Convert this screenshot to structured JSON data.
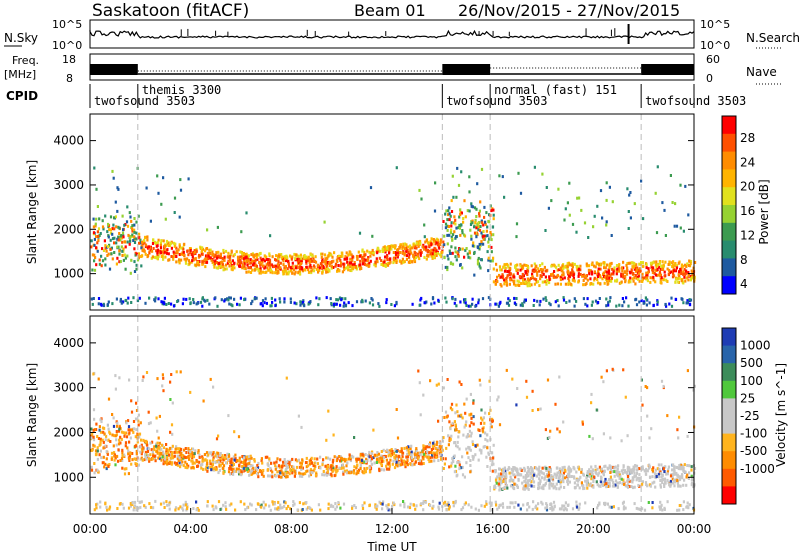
{
  "header": {
    "station": "Saskatoon (fitACF)",
    "beam": "Beam 01",
    "date_range": "26/Nov/2015 - 27/Nov/2015"
  },
  "top_panels": {
    "nsky_label": "N.Sky",
    "nsky_ticks": [
      "10^5",
      "10^0"
    ],
    "nsearch_label": "N.Search",
    "nsearch_ticks": [
      "10^5",
      "10^0"
    ],
    "freq_label_1": "Freq.",
    "freq_label_2": "[MHz]",
    "freq_ticks": [
      "18",
      "8"
    ],
    "nave_label": "Nave",
    "nave_ticks": [
      "60",
      "0"
    ],
    "cpid_label": "CPID"
  },
  "cpid_segments": [
    {
      "name": "twofsound 3503",
      "start_h": 0.0,
      "end_h": 1.9
    },
    {
      "name": "themis 3300",
      "start_h": 1.9,
      "end_h": 14.0
    },
    {
      "name": "twofsound 3503",
      "start_h": 14.0,
      "end_h": 15.9
    },
    {
      "name": "normal (fast) 151",
      "start_h": 15.9,
      "end_h": 21.9
    },
    {
      "name": "twofsound 3503",
      "start_h": 21.9,
      "end_h": 24.0
    }
  ],
  "chart_data": [
    {
      "type": "heatmap",
      "quantity": "power",
      "xlabel": "",
      "ylabel": "Slant Range [km]",
      "xlim_h": [
        0,
        24
      ],
      "ylim": [
        180,
        4600
      ],
      "yticks": [
        "1000",
        "2000",
        "3000",
        "4000"
      ],
      "colorbar_label": "Power [dB]",
      "colorbar_ticks": [
        "28",
        "24",
        "20",
        "16",
        "12",
        "8",
        "4"
      ],
      "colorbar_colors": [
        "#ff0000",
        "#ff5000",
        "#ff8c00",
        "#ffb400",
        "#e1e11e",
        "#96d232",
        "#3c9b50",
        "#288c6e",
        "#1e5aa0",
        "#0000ff"
      ]
    },
    {
      "type": "heatmap",
      "quantity": "velocity",
      "xlabel": "Time UT",
      "ylabel": "Slant Range [km]",
      "xlim_h": [
        0,
        24
      ],
      "ylim": [
        180,
        4600
      ],
      "xticks": [
        "00:00",
        "04:00",
        "08:00",
        "12:00",
        "16:00",
        "20:00",
        "00:00"
      ],
      "yticks": [
        "1000",
        "2000",
        "3000",
        "4000"
      ],
      "colorbar_label": "Velocity [m s^-1]",
      "colorbar_ticks": [
        "1000",
        "500",
        "100",
        "25",
        "-25",
        "-100",
        "-500",
        "-1000"
      ],
      "colorbar_colors": [
        "#1e3cb4",
        "#2864aa",
        "#3c8c5a",
        "#50c83c",
        "#c8c8c8",
        "#c8c8c8",
        "#ffb41e",
        "#ff8c00",
        "#ff5a00",
        "#ff0000"
      ]
    }
  ]
}
